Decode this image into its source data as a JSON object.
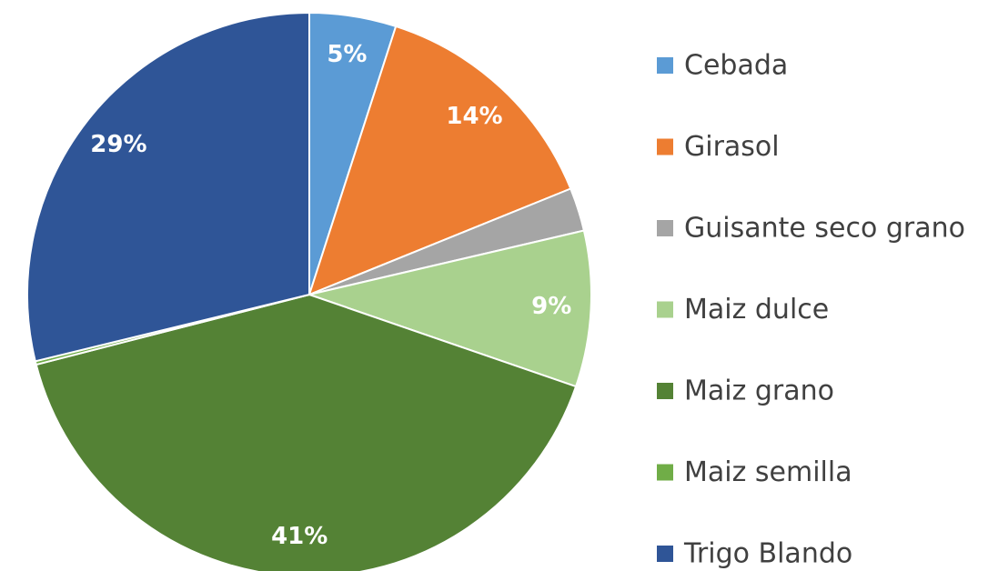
{
  "chart_data": {
    "type": "pie",
    "categories": [
      "Cebada",
      "Girasol",
      "Guisante seco grano",
      "Maiz dulce",
      "Maiz grano",
      "Maiz semilla",
      "Trigo Blando"
    ],
    "values": [
      5,
      14,
      2.5,
      9,
      41,
      0.2,
      29
    ],
    "value_labels": [
      "5%",
      "14%",
      null,
      "9%",
      "41%",
      null,
      "29%"
    ],
    "colors": [
      "#5b9bd5",
      "#ed7d31",
      "#a5a5a5",
      "#a9d18e",
      "#548235",
      "#70ad47",
      "#2f5597"
    ],
    "legend": "right"
  }
}
